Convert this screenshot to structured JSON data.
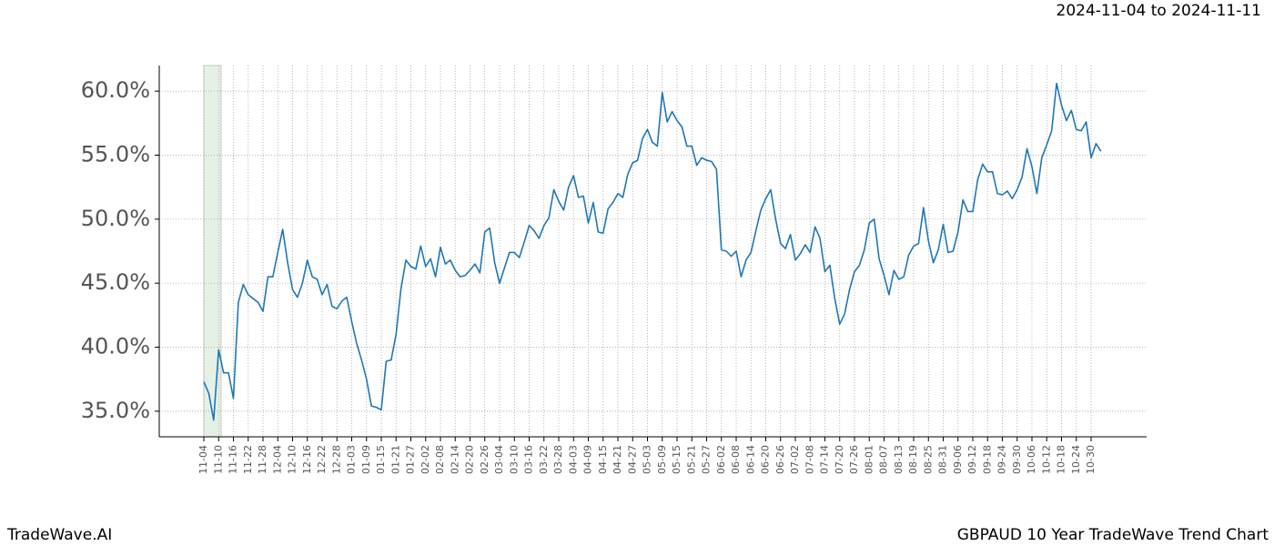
{
  "chart_data": {
    "type": "line",
    "title": "GBPAUD 10 Year TradeWave Trend Chart",
    "subtitle": "2024-11-04 to 2024-11-11",
    "source": "TradeWave.AI",
    "categories": [
      "11-04",
      null,
      null,
      "11-10",
      null,
      null,
      "11-16",
      null,
      null,
      "11-22",
      null,
      null,
      "11-28",
      null,
      null,
      "12-04",
      null,
      null,
      "12-10",
      null,
      null,
      "12-16",
      null,
      null,
      "12-22",
      null,
      null,
      "12-28",
      null,
      null,
      "01-03",
      null,
      null,
      "01-09",
      null,
      null,
      "01-15",
      null,
      null,
      "01-21",
      null,
      null,
      "01-27",
      null,
      null,
      "02-02",
      null,
      null,
      "02-08",
      null,
      null,
      "02-14",
      null,
      null,
      "02-20",
      null,
      null,
      "02-26",
      null,
      null,
      "03-04",
      null,
      null,
      "03-10",
      null,
      null,
      "03-16",
      null,
      null,
      "03-22",
      null,
      null,
      "03-28",
      null,
      null,
      "04-03",
      null,
      null,
      "04-09",
      null,
      null,
      "04-15",
      null,
      null,
      "04-21",
      null,
      null,
      "04-27",
      null,
      null,
      "05-03",
      null,
      null,
      "05-09",
      null,
      null,
      "05-15",
      null,
      null,
      "05-21",
      null,
      null,
      "05-27",
      null,
      null,
      "06-02",
      null,
      null,
      "06-08",
      null,
      null,
      "06-14",
      null,
      null,
      "06-20",
      null,
      null,
      "06-26",
      null,
      null,
      "07-02",
      null,
      null,
      "07-08",
      null,
      null,
      "07-14",
      null,
      null,
      "07-20",
      null,
      null,
      "07-26",
      null,
      null,
      "08-01",
      null,
      null,
      "08-07",
      null,
      null,
      "08-13",
      null,
      null,
      "08-19",
      null,
      null,
      "08-25",
      null,
      null,
      "08-31",
      null,
      null,
      "09-06",
      null,
      null,
      "09-12",
      null,
      null,
      "09-18",
      null,
      null,
      "09-24",
      null,
      null,
      "09-30",
      null,
      null,
      "10-06",
      null,
      null,
      "10-12",
      null,
      null,
      "10-18",
      null,
      null,
      "10-24",
      null,
      null,
      "10-30",
      null,
      null
    ],
    "values": [
      37.3,
      36.4,
      34.3,
      39.8,
      38.0,
      38.0,
      36.0,
      43.5,
      44.9,
      44.1,
      43.8,
      43.5,
      42.8,
      45.5,
      45.5,
      47.4,
      49.2,
      46.6,
      44.5,
      43.9,
      45.0,
      46.8,
      45.5,
      45.3,
      44.1,
      44.9,
      43.2,
      43.0,
      43.6,
      43.9,
      42.0,
      40.3,
      39.0,
      37.5,
      35.4,
      35.3,
      35.1,
      38.9,
      39.0,
      41.0,
      44.6,
      46.8,
      46.3,
      46.1,
      47.9,
      46.3,
      46.9,
      45.5,
      47.8,
      46.5,
      46.8,
      46.0,
      45.5,
      45.6,
      46.0,
      46.5,
      45.8,
      49.0,
      49.3,
      46.6,
      45.0,
      46.2,
      47.4,
      47.4,
      47.0,
      48.2,
      49.5,
      49.1,
      48.5,
      49.5,
      50.1,
      52.3,
      51.4,
      50.7,
      52.5,
      53.4,
      51.7,
      51.8,
      49.7,
      51.3,
      49.0,
      48.9,
      50.8,
      51.3,
      52.0,
      51.7,
      53.5,
      54.4,
      54.6,
      56.3,
      57.0,
      56.0,
      55.7,
      59.9,
      57.6,
      58.4,
      57.7,
      57.2,
      55.7,
      55.7,
      54.2,
      54.8,
      54.6,
      54.5,
      53.9,
      47.6,
      47.5,
      47.1,
      47.5,
      45.5,
      46.8,
      47.4,
      49.1,
      50.7,
      51.6,
      52.3,
      50.0,
      48.1,
      47.7,
      48.8,
      46.8,
      47.3,
      48.0,
      47.4,
      49.4,
      48.5,
      45.9,
      46.4,
      43.8,
      41.8,
      42.6,
      44.5,
      45.9,
      46.4,
      47.6,
      49.7,
      50.0,
      46.9,
      45.6,
      44.1,
      46.0,
      45.3,
      45.5,
      47.2,
      47.9,
      48.1,
      50.9,
      48.3,
      46.6,
      47.6,
      49.6,
      47.4,
      47.5,
      49.0,
      51.5,
      50.6,
      50.6,
      53.1,
      54.3,
      53.7,
      53.7,
      52.0,
      51.9,
      52.2,
      51.6,
      52.3,
      53.3,
      55.5,
      54.1,
      52.0,
      54.8,
      55.8,
      56.9,
      60.6,
      58.9,
      57.7,
      58.5,
      57.0,
      56.9,
      57.6,
      54.8,
      55.9,
      55.3
    ],
    "color": "#1f77b4",
    "highlight": {
      "from": 0,
      "to": 3.5
    },
    "highlight_color": "#d5e8d4",
    "ylim": [
      33.0,
      62.0
    ],
    "yticks": [
      {
        "value": 35,
        "label": "35.0%"
      },
      {
        "value": 40,
        "label": "40.0%"
      },
      {
        "value": 45,
        "label": "45.0%"
      },
      {
        "value": 50,
        "label": "50.0%"
      },
      {
        "value": 55,
        "label": "55.0%"
      },
      {
        "value": 60,
        "label": "60.0%"
      }
    ],
    "grid": true
  }
}
